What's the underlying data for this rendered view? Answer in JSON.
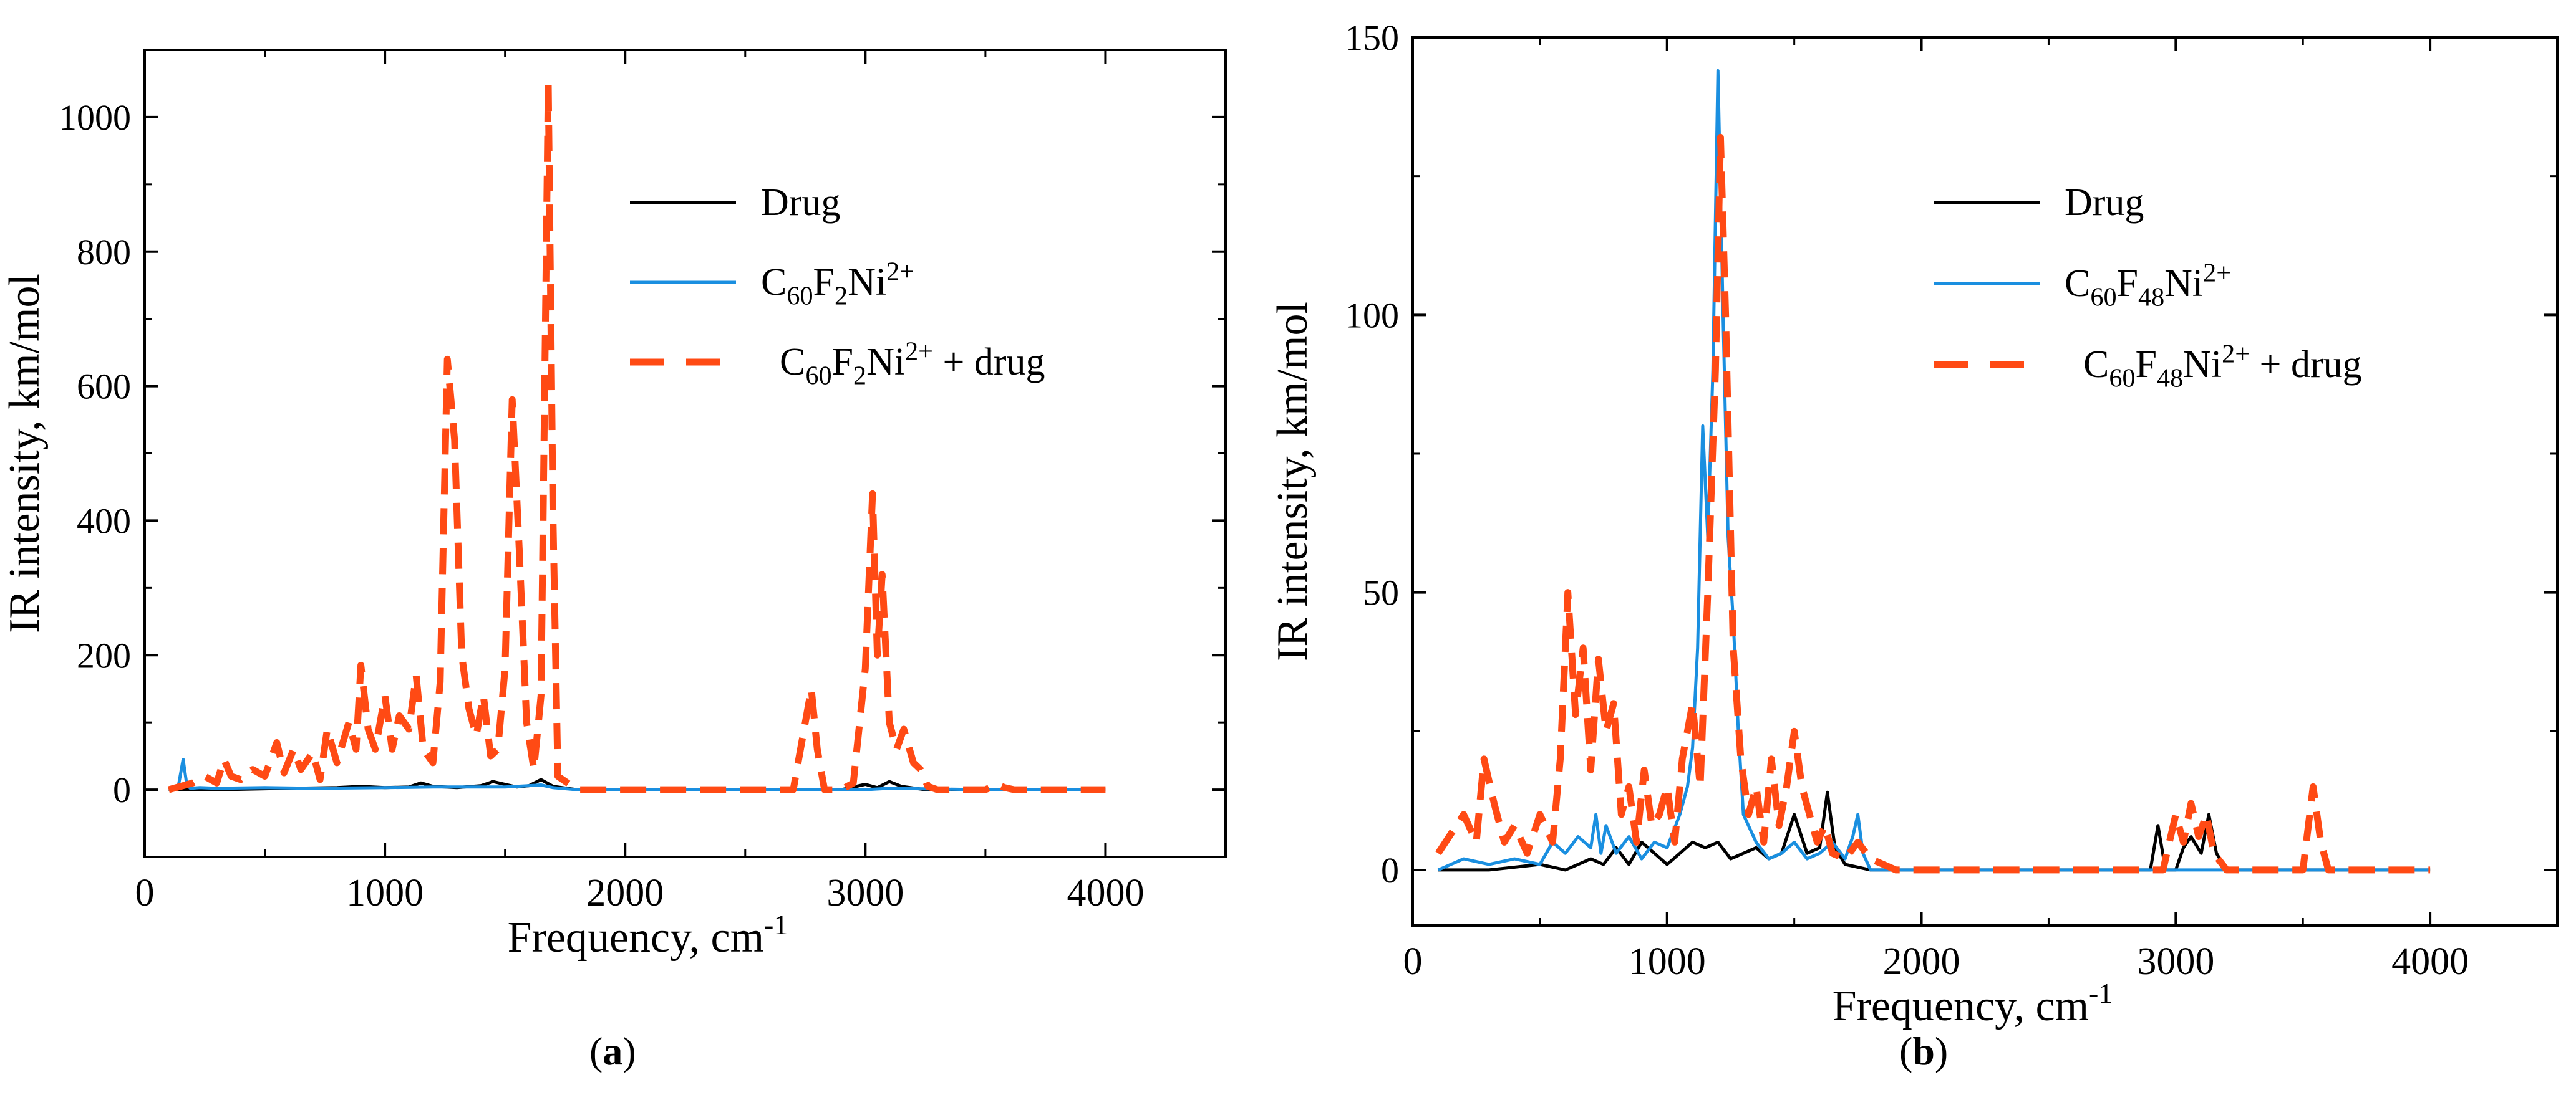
{
  "chart_data": [
    {
      "panel_label": "a",
      "type": "line",
      "xlabel": "Frequency, cm",
      "xlabel_sup": "-1",
      "ylabel": "IR intensity, km/mol",
      "xlim": [
        0,
        4500
      ],
      "ylim": [
        -100,
        1100
      ],
      "xticks": [
        0,
        1000,
        2000,
        3000,
        4000
      ],
      "yticks": [
        0,
        200,
        400,
        600,
        800,
        1000
      ],
      "grid": false,
      "legend_position": "top-right",
      "series": [
        {
          "name": "Drug",
          "legend": [
            {
              "t": "Drug"
            }
          ],
          "color": "#000000",
          "style": "solid",
          "x": [
            100,
            300,
            600,
            800,
            900,
            1000,
            1100,
            1150,
            1200,
            1300,
            1400,
            1450,
            1500,
            1550,
            1600,
            1650,
            1700,
            1800,
            2900,
            3000,
            3050,
            3100,
            3150,
            3250,
            4000
          ],
          "y": [
            0,
            0,
            2,
            3,
            5,
            3,
            4,
            10,
            5,
            3,
            6,
            12,
            8,
            4,
            6,
            15,
            5,
            0,
            0,
            8,
            3,
            12,
            5,
            0,
            0
          ]
        },
        {
          "name": "C60F2Ni2+",
          "legend": [
            {
              "t": "C"
            },
            {
              "t": "60",
              "sub": true
            },
            {
              "t": "F"
            },
            {
              "t": "2",
              "sub": true
            },
            {
              "t": "Ni"
            },
            {
              "t": "2+",
              "sup": true
            }
          ],
          "color": "#1a8fe0",
          "style": "solid",
          "x": [
            100,
            140,
            160,
            175,
            190,
            230,
            300,
            500,
            700,
            1000,
            1200,
            1500,
            1600,
            1650,
            1700,
            1800,
            2500,
            3000,
            3100,
            3500,
            4000
          ],
          "y": [
            0,
            5,
            45,
            8,
            2,
            3,
            2,
            3,
            2,
            3,
            4,
            4,
            6,
            7,
            3,
            0,
            0,
            0,
            2,
            0,
            0
          ],
          "name_plain": "C60F2Ni2+"
        },
        {
          "name": "C60F2Ni2+ + drug",
          "legend": [
            {
              "t": "C"
            },
            {
              "t": "60",
              "sub": true
            },
            {
              "t": "F"
            },
            {
              "t": "2",
              "sub": true
            },
            {
              "t": "Ni"
            },
            {
              "t": "2+",
              "sup": true
            },
            {
              "t": " + drug"
            }
          ],
          "color": "#ff4a14",
          "style": "dashed",
          "x": [
            100,
            200,
            250,
            300,
            330,
            360,
            400,
            450,
            500,
            550,
            580,
            620,
            650,
            700,
            730,
            760,
            800,
            850,
            880,
            900,
            930,
            960,
            1000,
            1030,
            1060,
            1100,
            1130,
            1160,
            1200,
            1230,
            1260,
            1290,
            1320,
            1350,
            1380,
            1410,
            1440,
            1470,
            1500,
            1530,
            1560,
            1590,
            1620,
            1650,
            1680,
            1700,
            1720,
            1800,
            2700,
            2750,
            2775,
            2800,
            2830,
            2900,
            2950,
            3000,
            3030,
            3050,
            3070,
            3100,
            3130,
            3160,
            3200,
            3230,
            3260,
            3300,
            3500,
            3550,
            3580,
            3620,
            4000
          ],
          "y": [
            0,
            10,
            20,
            10,
            45,
            20,
            15,
            30,
            20,
            70,
            25,
            60,
            30,
            55,
            15,
            90,
            40,
            100,
            60,
            185,
            90,
            60,
            140,
            60,
            110,
            90,
            170,
            60,
            40,
            160,
            640,
            520,
            200,
            120,
            80,
            140,
            50,
            60,
            180,
            580,
            350,
            100,
            30,
            140,
            1050,
            400,
            20,
            0,
            0,
            100,
            150,
            60,
            0,
            0,
            10,
            180,
            440,
            200,
            320,
            100,
            60,
            90,
            40,
            30,
            5,
            0,
            0,
            8,
            3,
            0,
            0
          ],
          "name_plain": "C60F2Ni2+ + drug"
        }
      ]
    },
    {
      "panel_label": "b",
      "type": "line",
      "xlabel": "Frequency, cm",
      "xlabel_sup": "-1",
      "ylabel": "IR intensity, km/mol",
      "xlim": [
        0,
        4500
      ],
      "ylim": [
        -10,
        150
      ],
      "xticks": [
        0,
        1000,
        2000,
        3000,
        4000
      ],
      "yticks": [
        0,
        50,
        100,
        150
      ],
      "grid": false,
      "legend_position": "top-right",
      "series": [
        {
          "name": "Drug",
          "legend": [
            {
              "t": "Drug"
            }
          ],
          "color": "#000000",
          "style": "solid",
          "x": [
            100,
            300,
            500,
            600,
            700,
            750,
            800,
            850,
            900,
            1000,
            1050,
            1100,
            1150,
            1200,
            1250,
            1300,
            1350,
            1400,
            1450,
            1500,
            1550,
            1600,
            1630,
            1660,
            1700,
            1800,
            2900,
            2930,
            2960,
            3000,
            3030,
            3060,
            3100,
            3130,
            3160,
            3200,
            4000
          ],
          "y": [
            0,
            0,
            1,
            0,
            2,
            1,
            4,
            1,
            5,
            1,
            3,
            5,
            4,
            5,
            2,
            3,
            4,
            2,
            3,
            10,
            3,
            4,
            14,
            4,
            1,
            0,
            0,
            8,
            0,
            0,
            4,
            6,
            3,
            10,
            3,
            0,
            0
          ]
        },
        {
          "name": "C60F48Ni2+",
          "legend": [
            {
              "t": "C"
            },
            {
              "t": "60",
              "sub": true
            },
            {
              "t": "F"
            },
            {
              "t": "48",
              "sub": true
            },
            {
              "t": "Ni"
            },
            {
              "t": "2+",
              "sup": true
            }
          ],
          "color": "#1a8fe0",
          "style": "solid",
          "x": [
            100,
            200,
            300,
            400,
            500,
            550,
            600,
            650,
            700,
            720,
            740,
            760,
            800,
            850,
            900,
            950,
            1000,
            1050,
            1080,
            1100,
            1120,
            1140,
            1160,
            1180,
            1200,
            1220,
            1240,
            1260,
            1280,
            1300,
            1350,
            1400,
            1450,
            1500,
            1550,
            1600,
            1650,
            1700,
            1730,
            1750,
            1770,
            1800,
            2000,
            3000,
            4000
          ],
          "y": [
            0,
            2,
            1,
            2,
            1,
            5,
            3,
            6,
            4,
            10,
            3,
            8,
            3,
            6,
            2,
            5,
            4,
            10,
            15,
            22,
            40,
            80,
            60,
            90,
            144,
            100,
            60,
            45,
            25,
            10,
            5,
            2,
            3,
            5,
            2,
            3,
            5,
            2,
            6,
            10,
            3,
            0,
            0,
            0,
            0
          ]
        },
        {
          "name": "C60F48Ni2+ + drug",
          "legend": [
            {
              "t": "C"
            },
            {
              "t": "60",
              "sub": true
            },
            {
              "t": "F"
            },
            {
              "t": "48",
              "sub": true
            },
            {
              "t": "Ni"
            },
            {
              "t": "2+",
              "sup": true
            },
            {
              "t": " + drug"
            }
          ],
          "color": "#ff4a14",
          "style": "dashed",
          "x": [
            100,
            200,
            250,
            280,
            320,
            360,
            400,
            450,
            500,
            550,
            580,
            610,
            640,
            670,
            700,
            730,
            760,
            790,
            820,
            850,
            880,
            910,
            940,
            970,
            1000,
            1030,
            1060,
            1100,
            1130,
            1160,
            1190,
            1210,
            1230,
            1260,
            1290,
            1320,
            1350,
            1380,
            1410,
            1440,
            1470,
            1500,
            1530,
            1560,
            1590,
            1620,
            1650,
            1700,
            1750,
            1800,
            1850,
            1900,
            2950,
            3000,
            3030,
            3060,
            3090,
            3120,
            3150,
            3200,
            3500,
            3540,
            3570,
            3600,
            4000
          ],
          "y": [
            3,
            10,
            5,
            20,
            12,
            5,
            8,
            3,
            10,
            5,
            20,
            50,
            28,
            40,
            18,
            38,
            25,
            30,
            10,
            15,
            5,
            18,
            8,
            10,
            15,
            5,
            20,
            30,
            15,
            50,
            90,
            132,
            100,
            40,
            20,
            10,
            15,
            5,
            20,
            8,
            15,
            25,
            15,
            10,
            5,
            8,
            3,
            2,
            5,
            2,
            1,
            0,
            0,
            10,
            5,
            12,
            6,
            10,
            3,
            0,
            0,
            15,
            5,
            0,
            0
          ]
        }
      ]
    }
  ],
  "captions": [
    {
      "open": "(",
      "label": "a",
      "close": ")"
    },
    {
      "open": "(",
      "label": "b",
      "close": ")"
    }
  ]
}
